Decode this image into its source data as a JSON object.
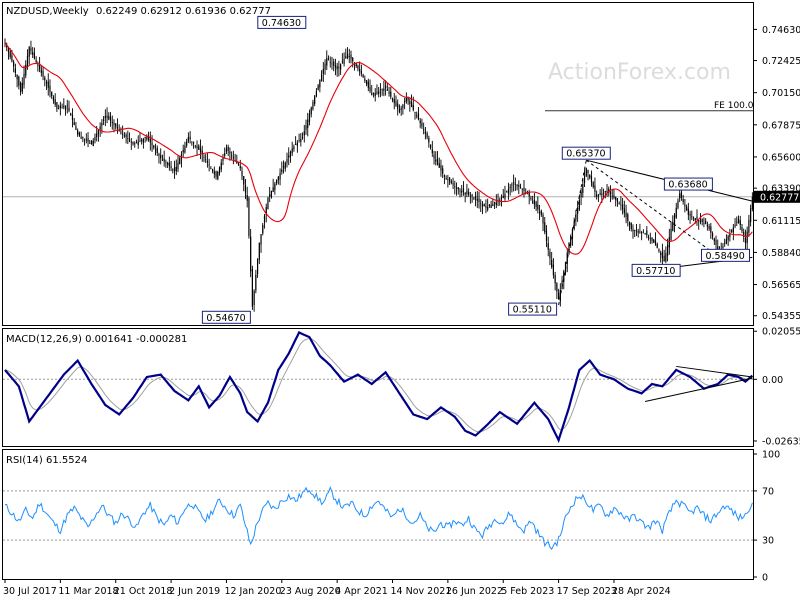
{
  "header": {
    "symbol_label": "NZDUSD,Weekly",
    "ohlc_text": "0.62249 0.62912 0.61936 0.62777"
  },
  "watermark": "ActionForex.com",
  "colors": {
    "candle": "#000000",
    "ma": "#e8000b",
    "macd": "#00008b",
    "signal": "#a0a0a0",
    "rsi": "#1e90ff",
    "accent_box": "#1a237e"
  },
  "chart_data": [
    {
      "id": "price",
      "type": "candlestick",
      "title": "NZDUSD,Weekly",
      "ylim": [
        0.537,
        0.765
      ],
      "y_ticks": [
        "0.74630",
        "0.72425",
        "0.70150",
        "0.67875",
        "0.65600",
        "0.63390",
        "0.61115",
        "0.58840",
        "0.56565",
        "0.54355"
      ],
      "y_tick_values": [
        0.7463,
        0.72425,
        0.7015,
        0.67875,
        0.656,
        0.6339,
        0.61115,
        0.5884,
        0.56565,
        0.54355
      ],
      "current_price_label": "0.62777",
      "current_price": 0.62777,
      "fe_label": "FE 100.0",
      "fe_level": 0.6887,
      "annotations": [
        {
          "text": "0.74630",
          "x": 160,
          "y": 0.7463
        },
        {
          "text": "0.54670",
          "x": 143,
          "y": 0.5467
        },
        {
          "text": "0.55110",
          "x": 320,
          "y": 0.5511
        },
        {
          "text": "0.65370",
          "x": 336,
          "y": 0.6537
        },
        {
          "text": "0.63680",
          "x": 380,
          "y": 0.6368
        },
        {
          "text": "0.57710",
          "x": 381,
          "y": 0.5771
        },
        {
          "text": "0.58490",
          "x": 413,
          "y": 0.5849
        }
      ],
      "trendlines": [
        {
          "x1": 336,
          "y1": 0.6537,
          "x2": 432,
          "y2": 0.6247
        },
        {
          "x1": 381,
          "y1": 0.5771,
          "x2": 432,
          "y2": 0.5849
        },
        {
          "x1": 320,
          "y1": 0.5511,
          "x2": 336,
          "y2": 0.6537,
          "dashed": true
        },
        {
          "x1": 336,
          "y1": 0.6537,
          "x2": 413,
          "y2": 0.5849,
          "dashed": true
        }
      ]
    },
    {
      "id": "macd",
      "type": "line",
      "title": "MACD(12,26,9) 0.001641 -0.000281",
      "ylim": [
        -0.0285,
        0.0215
      ],
      "y_ticks": [
        "0.020555",
        "0.00",
        "-0.026356"
      ],
      "y_tick_values": [
        0.020555,
        0.0,
        -0.026356
      ],
      "trendlines": [
        {
          "x1": 370,
          "y1": -0.0095,
          "x2": 432,
          "y2": 0.0005
        },
        {
          "x1": 388,
          "y1": 0.0055,
          "x2": 432,
          "y2": 0.001
        }
      ]
    },
    {
      "id": "rsi",
      "type": "line",
      "title": "RSI(14) 61.5524",
      "ylim": [
        0,
        100
      ],
      "y_ticks": [
        "100",
        "70",
        "30",
        "0"
      ],
      "y_tick_values": [
        100,
        70,
        30,
        0
      ]
    }
  ],
  "x_ticks": [
    {
      "label": "30 Jul 2017",
      "x": 0
    },
    {
      "label": "11 Mar 2018",
      "x": 32
    },
    {
      "label": "21 Oct 2018",
      "x": 64
    },
    {
      "label": "2 Jun 2019",
      "x": 96
    },
    {
      "label": "12 Jan 2020",
      "x": 128
    },
    {
      "label": "23 Aug 2020",
      "x": 160
    },
    {
      "label": "4 Apr 2021",
      "x": 192
    },
    {
      "label": "14 Nov 2021",
      "x": 224
    },
    {
      "label": "26 Jun 2022",
      "x": 256
    },
    {
      "label": "5 Feb 2023",
      "x": 288
    },
    {
      "label": "17 Sep 2023",
      "x": 320
    },
    {
      "label": "28 Apr 2024",
      "x": 352
    }
  ],
  "price_anchors": [
    [
      0,
      0.737
    ],
    [
      5,
      0.72
    ],
    [
      9,
      0.702
    ],
    [
      14,
      0.734
    ],
    [
      18,
      0.723
    ],
    [
      24,
      0.708
    ],
    [
      30,
      0.69
    ],
    [
      36,
      0.692
    ],
    [
      42,
      0.672
    ],
    [
      50,
      0.665
    ],
    [
      58,
      0.685
    ],
    [
      66,
      0.675
    ],
    [
      74,
      0.665
    ],
    [
      82,
      0.67
    ],
    [
      90,
      0.655
    ],
    [
      98,
      0.646
    ],
    [
      106,
      0.67
    ],
    [
      114,
      0.658
    ],
    [
      122,
      0.642
    ],
    [
      128,
      0.662
    ],
    [
      136,
      0.648
    ],
    [
      140,
      0.625
    ],
    [
      143,
      0.55
    ],
    [
      147,
      0.595
    ],
    [
      152,
      0.627
    ],
    [
      158,
      0.642
    ],
    [
      166,
      0.662
    ],
    [
      172,
      0.67
    ],
    [
      178,
      0.695
    ],
    [
      186,
      0.726
    ],
    [
      192,
      0.718
    ],
    [
      198,
      0.729
    ],
    [
      206,
      0.715
    ],
    [
      212,
      0.7
    ],
    [
      220,
      0.705
    ],
    [
      228,
      0.688
    ],
    [
      232,
      0.698
    ],
    [
      238,
      0.685
    ],
    [
      244,
      0.67
    ],
    [
      248,
      0.655
    ],
    [
      254,
      0.642
    ],
    [
      262,
      0.633
    ],
    [
      270,
      0.628
    ],
    [
      278,
      0.62
    ],
    [
      286,
      0.625
    ],
    [
      294,
      0.638
    ],
    [
      302,
      0.63
    ],
    [
      310,
      0.615
    ],
    [
      316,
      0.578
    ],
    [
      320,
      0.555
    ],
    [
      326,
      0.595
    ],
    [
      331,
      0.62
    ],
    [
      336,
      0.648
    ],
    [
      342,
      0.628
    ],
    [
      348,
      0.632
    ],
    [
      356,
      0.622
    ],
    [
      362,
      0.605
    ],
    [
      370,
      0.602
    ],
    [
      376,
      0.594
    ],
    [
      381,
      0.582
    ],
    [
      385,
      0.605
    ],
    [
      390,
      0.63
    ],
    [
      395,
      0.615
    ],
    [
      400,
      0.612
    ],
    [
      406,
      0.608
    ],
    [
      413,
      0.588
    ],
    [
      418,
      0.6
    ],
    [
      424,
      0.612
    ],
    [
      428,
      0.595
    ],
    [
      432,
      0.6278
    ]
  ],
  "macd_anchors": [
    [
      0,
      0.004
    ],
    [
      8,
      -0.003
    ],
    [
      14,
      -0.018
    ],
    [
      20,
      -0.012
    ],
    [
      26,
      -0.006
    ],
    [
      34,
      0.002
    ],
    [
      42,
      0.008
    ],
    [
      50,
      -0.002
    ],
    [
      58,
      -0.011
    ],
    [
      66,
      -0.015
    ],
    [
      74,
      -0.008
    ],
    [
      82,
      0.001
    ],
    [
      90,
      0.002
    ],
    [
      98,
      -0.005
    ],
    [
      106,
      -0.009
    ],
    [
      112,
      -0.003
    ],
    [
      118,
      -0.012
    ],
    [
      124,
      -0.007
    ],
    [
      130,
      0.001
    ],
    [
      136,
      -0.006
    ],
    [
      140,
      -0.014
    ],
    [
      146,
      -0.018
    ],
    [
      152,
      -0.01
    ],
    [
      158,
      0.004
    ],
    [
      164,
      0.011
    ],
    [
      170,
      0.02
    ],
    [
      176,
      0.018
    ],
    [
      182,
      0.01
    ],
    [
      188,
      0.006
    ],
    [
      196,
      -0.001
    ],
    [
      204,
      0.002
    ],
    [
      212,
      -0.002
    ],
    [
      220,
      0.003
    ],
    [
      228,
      -0.006
    ],
    [
      236,
      -0.015
    ],
    [
      244,
      -0.017
    ],
    [
      252,
      -0.012
    ],
    [
      260,
      -0.016
    ],
    [
      266,
      -0.022
    ],
    [
      272,
      -0.024
    ],
    [
      278,
      -0.02
    ],
    [
      286,
      -0.014
    ],
    [
      296,
      -0.019
    ],
    [
      306,
      -0.01
    ],
    [
      314,
      -0.017
    ],
    [
      320,
      -0.026
    ],
    [
      326,
      -0.012
    ],
    [
      332,
      0.004
    ],
    [
      338,
      0.008
    ],
    [
      344,
      0.002
    ],
    [
      352,
      0.0
    ],
    [
      360,
      -0.004
    ],
    [
      368,
      -0.006
    ],
    [
      374,
      -0.002
    ],
    [
      380,
      -0.003
    ],
    [
      388,
      0.004
    ],
    [
      396,
      0.001
    ],
    [
      404,
      -0.004
    ],
    [
      412,
      -0.002
    ],
    [
      418,
      0.002
    ],
    [
      424,
      0.001
    ],
    [
      428,
      -0.001
    ],
    [
      432,
      0.0016
    ]
  ],
  "rsi_anchors": [
    [
      0,
      58
    ],
    [
      4,
      52
    ],
    [
      8,
      45
    ],
    [
      12,
      54
    ],
    [
      16,
      48
    ],
    [
      20,
      60
    ],
    [
      24,
      52
    ],
    [
      28,
      44
    ],
    [
      32,
      38
    ],
    [
      36,
      50
    ],
    [
      40,
      56
    ],
    [
      44,
      48
    ],
    [
      48,
      40
    ],
    [
      52,
      50
    ],
    [
      56,
      58
    ],
    [
      60,
      50
    ],
    [
      64,
      44
    ],
    [
      68,
      52
    ],
    [
      72,
      46
    ],
    [
      76,
      40
    ],
    [
      80,
      52
    ],
    [
      84,
      58
    ],
    [
      88,
      48
    ],
    [
      92,
      42
    ],
    [
      96,
      50
    ],
    [
      100,
      44
    ],
    [
      104,
      56
    ],
    [
      108,
      60
    ],
    [
      112,
      52
    ],
    [
      116,
      46
    ],
    [
      120,
      54
    ],
    [
      124,
      62
    ],
    [
      128,
      56
    ],
    [
      132,
      50
    ],
    [
      136,
      58
    ],
    [
      139,
      42
    ],
    [
      142,
      26
    ],
    [
      145,
      40
    ],
    [
      148,
      52
    ],
    [
      152,
      60
    ],
    [
      156,
      55
    ],
    [
      160,
      62
    ],
    [
      164,
      66
    ],
    [
      168,
      62
    ],
    [
      172,
      68
    ],
    [
      176,
      72
    ],
    [
      180,
      65
    ],
    [
      184,
      60
    ],
    [
      188,
      70
    ],
    [
      192,
      62
    ],
    [
      196,
      56
    ],
    [
      200,
      60
    ],
    [
      204,
      54
    ],
    [
      208,
      50
    ],
    [
      212,
      58
    ],
    [
      216,
      62
    ],
    [
      220,
      54
    ],
    [
      224,
      48
    ],
    [
      228,
      56
    ],
    [
      232,
      50
    ],
    [
      236,
      44
    ],
    [
      240,
      50
    ],
    [
      244,
      40
    ],
    [
      248,
      36
    ],
    [
      252,
      44
    ],
    [
      256,
      40
    ],
    [
      260,
      46
    ],
    [
      264,
      42
    ],
    [
      268,
      48
    ],
    [
      272,
      38
    ],
    [
      276,
      34
    ],
    [
      280,
      42
    ],
    [
      284,
      48
    ],
    [
      288,
      44
    ],
    [
      292,
      52
    ],
    [
      296,
      42
    ],
    [
      300,
      38
    ],
    [
      304,
      46
    ],
    [
      308,
      36
    ],
    [
      312,
      28
    ],
    [
      316,
      24
    ],
    [
      320,
      30
    ],
    [
      324,
      48
    ],
    [
      328,
      60
    ],
    [
      332,
      66
    ],
    [
      336,
      62
    ],
    [
      340,
      54
    ],
    [
      344,
      58
    ],
    [
      348,
      50
    ],
    [
      352,
      56
    ],
    [
      356,
      52
    ],
    [
      360,
      46
    ],
    [
      364,
      50
    ],
    [
      368,
      44
    ],
    [
      372,
      40
    ],
    [
      376,
      46
    ],
    [
      380,
      38
    ],
    [
      384,
      52
    ],
    [
      388,
      62
    ],
    [
      392,
      58
    ],
    [
      396,
      52
    ],
    [
      400,
      56
    ],
    [
      404,
      50
    ],
    [
      408,
      46
    ],
    [
      412,
      52
    ],
    [
      416,
      58
    ],
    [
      420,
      54
    ],
    [
      424,
      48
    ],
    [
      428,
      50
    ],
    [
      432,
      62
    ]
  ]
}
